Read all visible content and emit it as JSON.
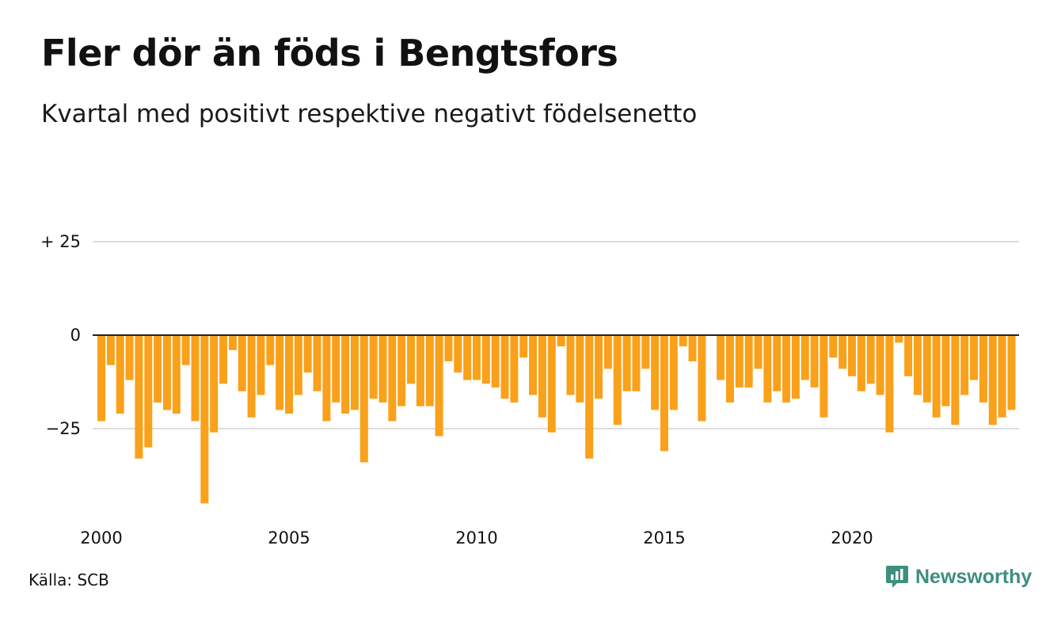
{
  "title": "Fler dör än föds i Bengtsfors",
  "subtitle": "Kvartal med positivt respektive negativt födelsenetto",
  "source": "Källa: SCB",
  "brand": {
    "name": "Newsworthy",
    "icon": "newsworthy-logo-icon",
    "color": "#3d8f7e"
  },
  "colors": {
    "bar": "#f9a11b",
    "grid": "#dddddd",
    "zero_line": "#222222"
  },
  "chart_data": {
    "type": "bar",
    "title": "Fler dör än föds i Bengtsfors",
    "subtitle": "Kvartal med positivt respektive negativt födelsenetto",
    "xlabel": "",
    "ylabel": "",
    "ylim": [
      -48,
      25
    ],
    "y_ticks": [
      {
        "value": 25,
        "label": "+ 25"
      },
      {
        "value": 0,
        "label": "0"
      },
      {
        "value": -25,
        "label": "−25"
      }
    ],
    "x_ticks": [
      {
        "value": 2000,
        "label": "2000"
      },
      {
        "value": 2005,
        "label": "2005"
      },
      {
        "value": 2010,
        "label": "2010"
      },
      {
        "value": 2015,
        "label": "2015"
      },
      {
        "value": 2020,
        "label": "2020"
      }
    ],
    "x_start": 2000,
    "periods_per_year": 4,
    "grid": true,
    "values": [
      -23,
      -8,
      -21,
      -12,
      -33,
      -30,
      -18,
      -20,
      -21,
      -8,
      -23,
      -45,
      -26,
      -13,
      -4,
      -15,
      -22,
      -16,
      -8,
      -20,
      -21,
      -16,
      -10,
      -15,
      -23,
      -18,
      -21,
      -20,
      -34,
      -17,
      -18,
      -23,
      -19,
      -13,
      -19,
      -19,
      -27,
      -7,
      -10,
      -12,
      -12,
      -13,
      -14,
      -17,
      -18,
      -6,
      -16,
      -22,
      -26,
      -3,
      -16,
      -18,
      -33,
      -17,
      -9,
      -24,
      -15,
      -15,
      -9,
      -20,
      -31,
      -20,
      -3,
      -7,
      -23,
      0,
      -12,
      -18,
      -14,
      -14,
      -9,
      -18,
      -15,
      -18,
      -17,
      -12,
      -14,
      -22,
      -6,
      -9,
      -11,
      -15,
      -13,
      -16,
      -26,
      -2,
      -11,
      -16,
      -18,
      -22,
      -19,
      -24,
      -16,
      -12,
      -18,
      -24,
      -22,
      -20
    ]
  }
}
